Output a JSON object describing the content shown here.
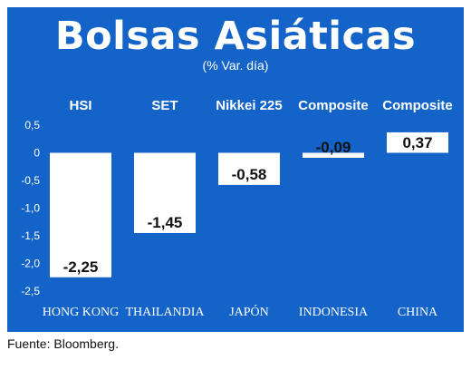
{
  "header": {
    "title": "Bolsas Asiáticas",
    "subtitle": "(% Var. día)"
  },
  "footer": {
    "source": "Fuente: Bloomberg."
  },
  "colors": {
    "background": "#1463c9",
    "bar": "#ffffff",
    "text": "#ffffff"
  },
  "chart_data": {
    "type": "bar",
    "index_names": [
      "HSI",
      "SET",
      "Nikkei 225",
      "Composite",
      "Composite"
    ],
    "categories": [
      "HONG KONG",
      "THAILANDIA",
      "JAPÓN",
      "INDONESIA",
      "CHINA"
    ],
    "values": [
      -2.25,
      -1.45,
      -0.58,
      -0.09,
      0.37
    ],
    "value_labels": [
      "-2,25",
      "-1,45",
      "-0,58",
      "-0,09",
      "0,37"
    ],
    "ylim": [
      -2.5,
      0.5
    ],
    "y_ticks": [
      0.5,
      0,
      -0.5,
      -1.0,
      -1.5,
      -2.0,
      -2.5
    ],
    "y_tick_labels": [
      "0,5",
      "0",
      "-0,5",
      "-1,0",
      "-1,5",
      "-2,0",
      "-2,5"
    ],
    "grid": false
  }
}
